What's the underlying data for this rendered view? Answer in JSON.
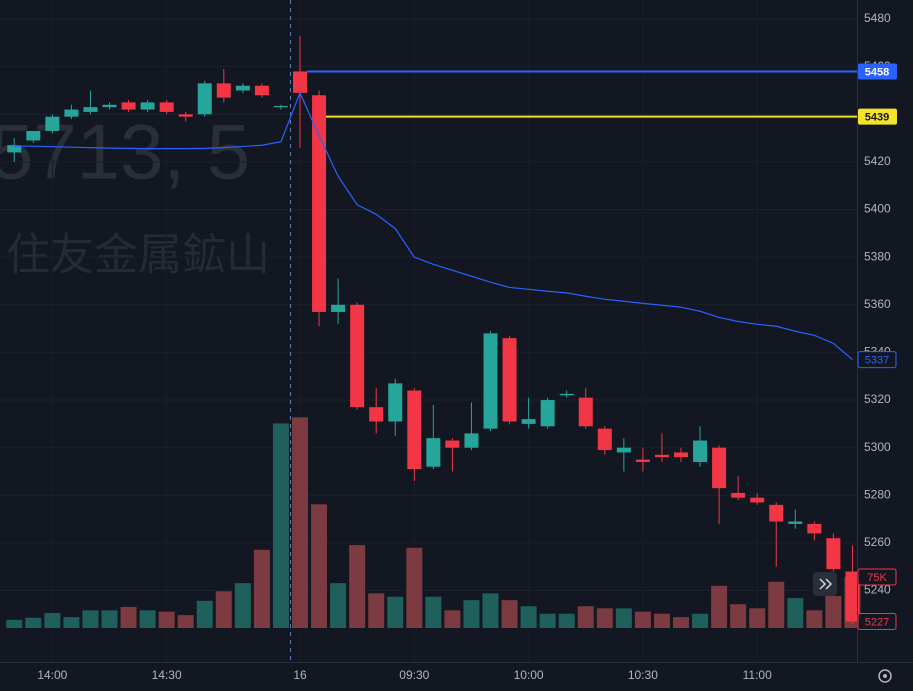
{
  "chart_data": {
    "type": "candlestick",
    "watermark": {
      "symbol": "5713, 5",
      "name": "住友金属鉱山"
    },
    "open": [
      5424,
      5429,
      5433,
      5439,
      5441,
      5443,
      5445,
      5442,
      5445,
      5440,
      5440,
      5453,
      5450,
      5452,
      5443,
      5458,
      5448,
      5357,
      5360,
      5317,
      5311,
      5324,
      5292,
      5303,
      5300,
      5308,
      5346,
      5310,
      5309,
      5322,
      5321,
      5308,
      5298,
      5295,
      5297,
      5298,
      5294,
      5300,
      5281,
      5279,
      5276,
      5268,
      5268,
      5262,
      5248
    ],
    "high": [
      5430,
      5433,
      5440,
      5444,
      5450,
      5445,
      5446,
      5446,
      5446,
      5441,
      5454,
      5459,
      5453,
      5453,
      5444,
      5473,
      5450,
      5371,
      5361,
      5325,
      5329,
      5325,
      5318,
      5304,
      5319,
      5349,
      5347,
      5321,
      5321,
      5324,
      5325,
      5309,
      5304,
      5300,
      5306,
      5300,
      5309,
      5301,
      5288,
      5281,
      5277,
      5274,
      5269,
      5264,
      5259
    ],
    "low": [
      5420,
      5428,
      5432,
      5438,
      5440,
      5442,
      5441,
      5441,
      5440,
      5437,
      5439,
      5445,
      5449,
      5447,
      5442,
      5426,
      5351,
      5352,
      5316,
      5306,
      5305,
      5286,
      5291,
      5290,
      5299,
      5307,
      5310,
      5308,
      5308,
      5321,
      5308,
      5297,
      5290,
      5290,
      5294,
      5294,
      5292,
      5268,
      5278,
      5276,
      5250,
      5266,
      5261,
      5248,
      5226
    ],
    "close": [
      5427,
      5433,
      5439,
      5442,
      5443,
      5444,
      5442,
      5445,
      5441,
      5439,
      5453,
      5447,
      5452,
      5448,
      5443.5,
      5449,
      5357,
      5360,
      5317,
      5311,
      5327,
      5291,
      5304,
      5300,
      5306,
      5348,
      5311,
      5312,
      5320,
      5322.6,
      5309,
      5299,
      5300,
      5294,
      5296,
      5296,
      5303,
      5283,
      5279,
      5277,
      5269,
      5269,
      5264,
      5249,
      5227
    ],
    "volume": [
      12,
      15,
      22,
      16,
      26,
      26,
      31,
      26,
      24,
      19,
      40,
      54,
      66,
      115,
      301,
      310,
      182,
      66,
      122,
      51,
      46,
      118,
      46,
      26,
      41,
      51,
      41,
      32,
      21,
      21,
      32,
      29,
      29,
      24,
      21,
      16,
      21,
      62,
      35,
      29,
      68,
      44,
      26,
      47,
      75
    ],
    "volume_last_label": "75K",
    "vwap": [
      5426.6,
      5426.6,
      5426.4,
      5426.2,
      5426,
      5425.8,
      5425.7,
      5425.6,
      5425.6,
      5425.6,
      5425.7,
      5426,
      5426.5,
      5427,
      5428.5,
      5449,
      5431,
      5414,
      5402,
      5398,
      5392,
      5380,
      5377,
      5374.5,
      5372,
      5369.5,
      5367.3,
      5366.5,
      5365.7,
      5365,
      5363.6,
      5362.3,
      5361.5,
      5360.6,
      5359.8,
      5359,
      5357.3,
      5354.7,
      5353,
      5351.8,
      5351,
      5348.9,
      5347.2,
      5343.8,
      5337
    ],
    "colors": {
      "up": "#26a69a",
      "down": "#f23645",
      "up_volume": "#1f5f5c",
      "down_volume": "#7c3a41",
      "vwap": "#2962ff"
    },
    "ylim": [
      5210,
      5488
    ],
    "yticks": [
      5240,
      5260,
      5280,
      5300,
      5320,
      5340,
      5360,
      5380,
      5400,
      5420,
      5440,
      5460,
      5480
    ],
    "volume_lim": [
      0,
      924
    ],
    "xticks": [
      {
        "value": 2,
        "label": "14:00"
      },
      {
        "value": 8,
        "label": "14:30"
      },
      {
        "value": 15,
        "label": "16"
      },
      {
        "value": 21,
        "label": "09:30"
      },
      {
        "value": 27,
        "label": "10:00"
      },
      {
        "value": 33,
        "label": "10:30"
      },
      {
        "value": 39,
        "label": "11:00"
      }
    ],
    "session_break": 14.5,
    "price_lines": [
      {
        "value": 5458,
        "color": "#2962ff",
        "start": 15
      },
      {
        "value": 5439,
        "color": "#f5e22a",
        "start": 16
      }
    ]
  }
}
